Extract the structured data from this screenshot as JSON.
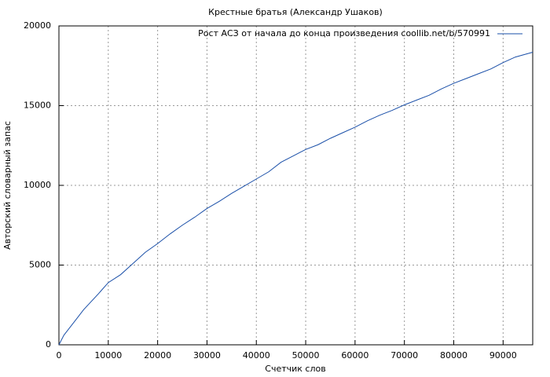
{
  "chart_data": {
    "type": "line",
    "title": "Крестные братья (Александр Ушаков)",
    "x_label": "Счетчик слов",
    "y_label": "Авторский словарный запас",
    "x": [
      0,
      1000,
      2000,
      3500,
      5000,
      6500,
      8000,
      10000,
      12500,
      15000,
      17500,
      20000,
      22500,
      25000,
      27500,
      30000,
      32500,
      35000,
      37500,
      40000,
      42500,
      45000,
      47500,
      50000,
      52500,
      55000,
      57500,
      60000,
      62500,
      65000,
      67500,
      70000,
      72500,
      75000,
      77500,
      80000,
      82500,
      85000,
      87500,
      90000,
      92500,
      96000
    ],
    "series": [
      {
        "name": "Рост АСЗ от начала до конца произведения coollib.net/b/570991",
        "color": "#1a4fa8",
        "values": [
          0,
          600,
          1000,
          1600,
          2200,
          2700,
          3200,
          3900,
          4400,
          5100,
          5800,
          6350,
          6950,
          7500,
          8000,
          8550,
          9000,
          9500,
          9950,
          10400,
          10850,
          11450,
          11850,
          12250,
          12550,
          12950,
          13300,
          13650,
          14050,
          14400,
          14700,
          15050,
          15350,
          15650,
          16050,
          16400,
          16700,
          17000,
          17300,
          17700,
          18050,
          18350
        ]
      }
    ],
    "xlim": [
      0,
      96000
    ],
    "ylim": [
      0,
      20000
    ],
    "xticks": [
      0,
      10000,
      20000,
      30000,
      40000,
      50000,
      60000,
      70000,
      80000,
      90000
    ],
    "yticks": [
      0,
      5000,
      10000,
      15000,
      20000
    ],
    "grid": true,
    "legend": "top-right"
  }
}
